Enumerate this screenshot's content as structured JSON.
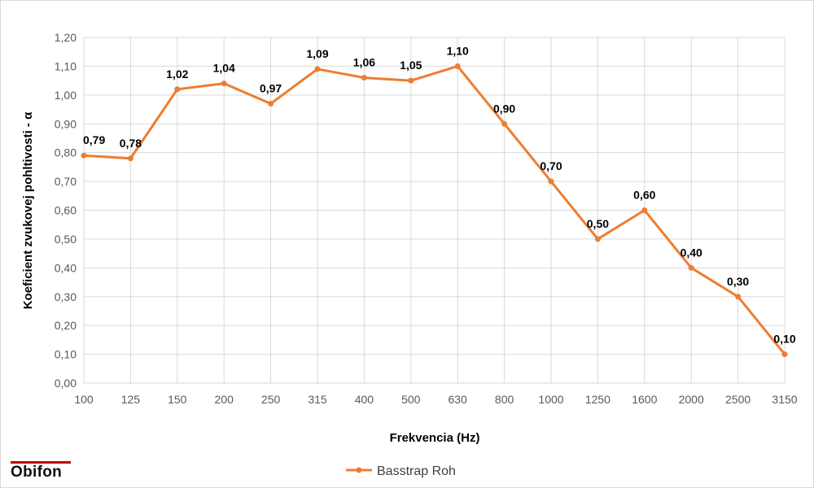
{
  "chart_data": {
    "type": "line",
    "categories": [
      "100",
      "125",
      "150",
      "200",
      "250",
      "315",
      "400",
      "500",
      "630",
      "800",
      "1000",
      "1250",
      "1600",
      "2000",
      "2500",
      "3150"
    ],
    "series": [
      {
        "name": "Basstrap Roh",
        "values": [
          0.79,
          0.78,
          1.02,
          1.04,
          0.97,
          1.09,
          1.06,
          1.05,
          1.1,
          0.9,
          0.7,
          0.5,
          0.6,
          0.4,
          0.3,
          0.1
        ],
        "data_labels": [
          "0,79",
          "0,78",
          "1,02",
          "1,04",
          "0,97",
          "1,09",
          "1,06",
          "1,05",
          "1,10",
          "0,90",
          "0,70",
          "0,50",
          "0,60",
          "0,40",
          "0,30",
          "0,10"
        ],
        "color": "#ed7d31"
      }
    ],
    "xlabel": "Frekvencia (Hz)",
    "ylabel": "Koeficient zvukovej pohltivosti - α",
    "ylim": [
      0,
      1.2
    ],
    "yticks": [
      0.0,
      0.1,
      0.2,
      0.3,
      0.4,
      0.5,
      0.6,
      0.7,
      0.8,
      0.9,
      1.0,
      1.1,
      1.2
    ],
    "ytick_labels": [
      "0,00",
      "0,10",
      "0,20",
      "0,30",
      "0,40",
      "0,50",
      "0,60",
      "0,70",
      "0,80",
      "0,90",
      "1,00",
      "1,10",
      "1,20"
    ],
    "grid": true,
    "legend": "bottom"
  },
  "branding": {
    "logo_text": "Obifon",
    "logo_accent_color": "#c00000"
  },
  "colors": {
    "grid": "#d9d9d9",
    "axis_text": "#595959"
  }
}
